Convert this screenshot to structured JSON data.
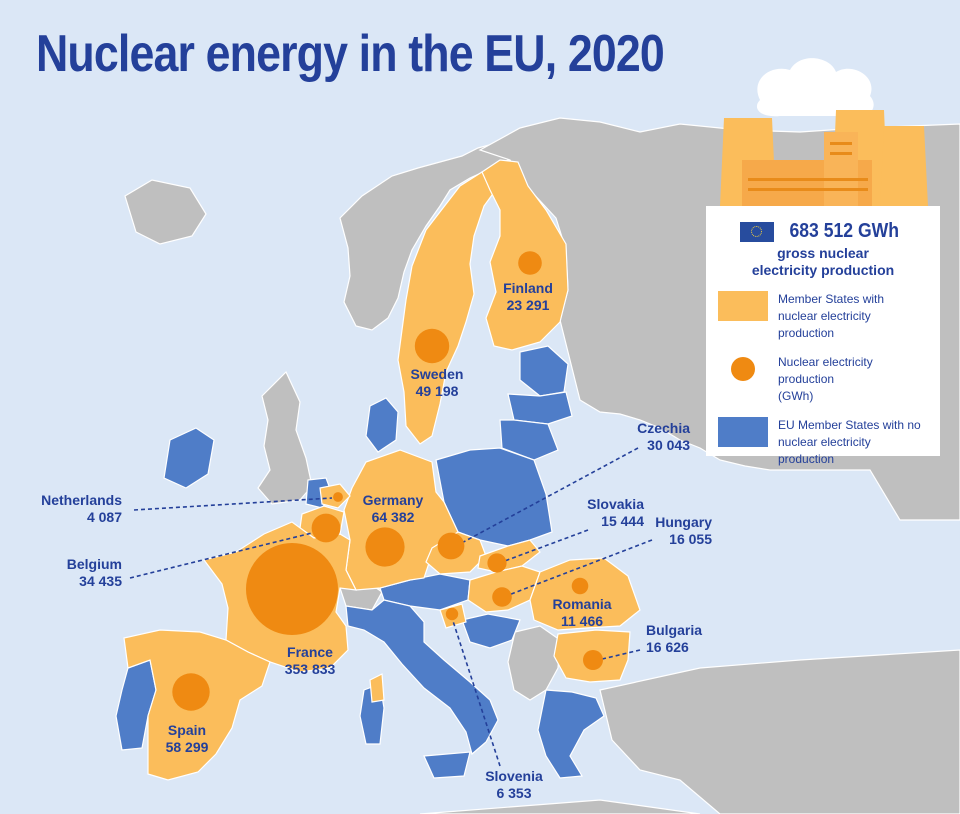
{
  "title": "Nuclear energy in the EU, 2020",
  "legend": {
    "total": "683 512 GWh",
    "total_caption_1": "gross nuclear",
    "total_caption_2": "electricity production",
    "item_producing_1": "Member States with",
    "item_producing_2": "nuclear electricity production",
    "item_bubble_1": "Nuclear electricity production",
    "item_bubble_2": "(GWh)",
    "item_none_1": "EU Member States with no",
    "item_none_2": "nuclear electricity production"
  },
  "colors": {
    "sea": "#dbe7f6",
    "non_eu_land": "#bfbfbf",
    "producer": "#fbbd5b",
    "non_producer": "#4f7dc8",
    "bubble": "#ef8a12",
    "text": "#24409a",
    "leader": "#24409a"
  },
  "countries": {
    "finland": {
      "name": "Finland",
      "value": "23 291"
    },
    "sweden": {
      "name": "Sweden",
      "value": "49 198"
    },
    "czechia": {
      "name": "Czechia",
      "value": "30 043"
    },
    "netherlands": {
      "name": "Netherlands",
      "value": "4 087"
    },
    "germany": {
      "name": "Germany",
      "value": "64 382"
    },
    "slovakia": {
      "name": "Slovakia",
      "value": "15 444"
    },
    "hungary": {
      "name": "Hungary",
      "value": "16 055"
    },
    "belgium": {
      "name": "Belgium",
      "value": "34 435"
    },
    "romania": {
      "name": "Romania",
      "value": "11 466"
    },
    "bulgaria": {
      "name": "Bulgaria",
      "value": "16 626"
    },
    "france": {
      "name": "France",
      "value": "353 833"
    },
    "spain": {
      "name": "Spain",
      "value": "58 299"
    },
    "slovenia": {
      "name": "Slovenia",
      "value": "6 353"
    }
  }
}
